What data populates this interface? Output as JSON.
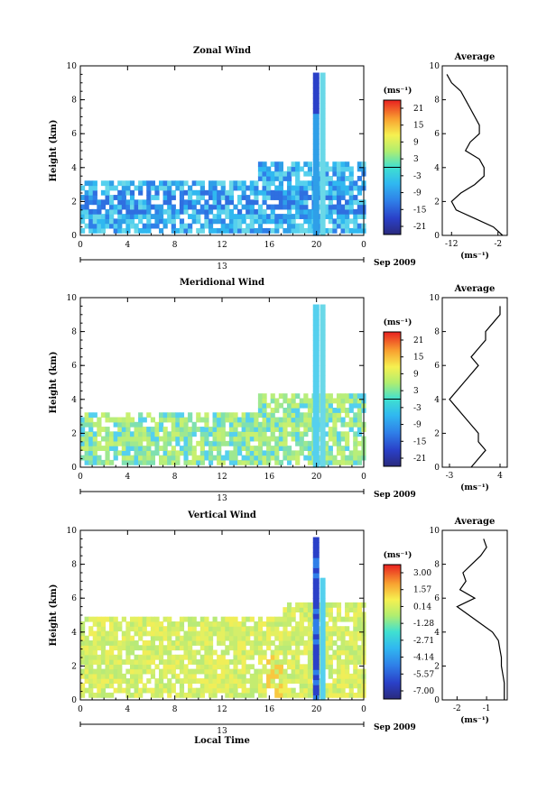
{
  "date_label": "Sep 2009",
  "xlabel": "Local Time",
  "ylabel": "Height (km)",
  "colorbar_unit": "(ms⁻¹)",
  "panels": [
    {
      "title": "Zonal Wind",
      "avg_title": "Average",
      "avg_xlabel": "(ms⁻¹)",
      "colorbar_ticks": [
        "21",
        "15",
        "9",
        "3",
        "-3",
        "-9",
        "-15",
        "-21"
      ],
      "avg_xticks": [
        "-12",
        "-2"
      ]
    },
    {
      "title": "Meridional Wind",
      "avg_title": "Average",
      "avg_xlabel": "(ms⁻¹)",
      "colorbar_ticks": [
        "21",
        "15",
        "9",
        "3",
        "-3",
        "-9",
        "-15",
        "-21"
      ],
      "avg_xticks": [
        "-3",
        "4"
      ]
    },
    {
      "title": "Vertical Wind",
      "avg_title": "Average",
      "avg_xlabel": "(ms⁻¹)",
      "colorbar_ticks": [
        "3.00",
        "1.57",
        "0.14",
        "-1.28",
        "-2.71",
        "-4.14",
        "-5.57",
        "-7.00"
      ],
      "avg_xticks": [
        "-2",
        "-1"
      ]
    }
  ],
  "chart_data": [
    {
      "type": "heatmap",
      "title": "Zonal Wind",
      "xlabel": "",
      "ylabel": "Height (km)",
      "x_ticks": [
        "0",
        "4",
        "8",
        "12",
        "16",
        "20",
        "0"
      ],
      "day_label": "13",
      "y_ticks": [
        "0",
        "2",
        "4",
        "6",
        "8",
        "10"
      ],
      "xlim": [
        0,
        24
      ],
      "ylim": [
        0,
        10
      ],
      "colorbar": {
        "min": -21,
        "max": 21,
        "unit": "(ms⁻¹)"
      },
      "average_profile": {
        "x_ticks": [
          "-12",
          "-2"
        ],
        "xlim": [
          -14,
          0
        ],
        "height": [
          0,
          0.5,
          1,
          1.5,
          2,
          2.5,
          3,
          3.5,
          4,
          4.5,
          5,
          5.5,
          6,
          6.5,
          7,
          7.5,
          8,
          8.5,
          9,
          9.5
        ],
        "value": [
          -1,
          -3,
          -7,
          -11,
          -12,
          -10,
          -7,
          -5,
          -5,
          -6,
          -9,
          -8,
          -6,
          -6,
          -7,
          -8,
          -9,
          -10,
          -12,
          -13
        ]
      }
    },
    {
      "type": "heatmap",
      "title": "Meridional Wind",
      "xlabel": "",
      "ylabel": "Height (km)",
      "x_ticks": [
        "0",
        "4",
        "8",
        "12",
        "16",
        "20",
        "0"
      ],
      "day_label": "13",
      "y_ticks": [
        "0",
        "2",
        "4",
        "6",
        "8",
        "10"
      ],
      "xlim": [
        0,
        24
      ],
      "ylim": [
        0,
        10
      ],
      "colorbar": {
        "min": -21,
        "max": 21,
        "unit": "(ms⁻¹)"
      },
      "average_profile": {
        "x_ticks": [
          "-3",
          "4"
        ],
        "xlim": [
          -4,
          5
        ],
        "height": [
          0,
          0.5,
          1,
          1.5,
          2,
          2.5,
          3,
          3.5,
          4,
          4.5,
          5,
          5.5,
          6,
          6.5,
          7,
          7.5,
          8,
          8.5,
          9,
          9.5
        ],
        "value": [
          0,
          1,
          2,
          1,
          1,
          0,
          -1,
          -2,
          -3,
          -2,
          -1,
          0,
          1,
          0,
          1,
          2,
          2,
          3,
          4,
          4
        ]
      }
    },
    {
      "type": "heatmap",
      "title": "Vertical Wind",
      "xlabel": "Local Time",
      "ylabel": "Height (km)",
      "x_ticks": [
        "0",
        "4",
        "8",
        "12",
        "16",
        "20",
        "0"
      ],
      "day_label": "13",
      "y_ticks": [
        "0",
        "2",
        "4",
        "6",
        "8",
        "10"
      ],
      "xlim": [
        0,
        24
      ],
      "ylim": [
        0,
        10
      ],
      "colorbar": {
        "min": -7,
        "max": 3,
        "unit": "(ms⁻¹)"
      },
      "average_profile": {
        "x_ticks": [
          "-2",
          "-1"
        ],
        "xlim": [
          -2.5,
          -0.3
        ],
        "height": [
          0,
          0.5,
          1,
          1.5,
          2,
          2.5,
          3,
          3.5,
          4,
          4.5,
          5,
          5.5,
          6,
          6.5,
          7,
          7.5,
          8,
          8.5,
          9,
          9.5
        ],
        "value": [
          -0.4,
          -0.4,
          -0.4,
          -0.45,
          -0.5,
          -0.5,
          -0.55,
          -0.6,
          -0.8,
          -1.2,
          -1.6,
          -2.0,
          -1.4,
          -1.9,
          -1.7,
          -1.8,
          -1.5,
          -1.2,
          -1.0,
          -1.1
        ]
      }
    }
  ]
}
